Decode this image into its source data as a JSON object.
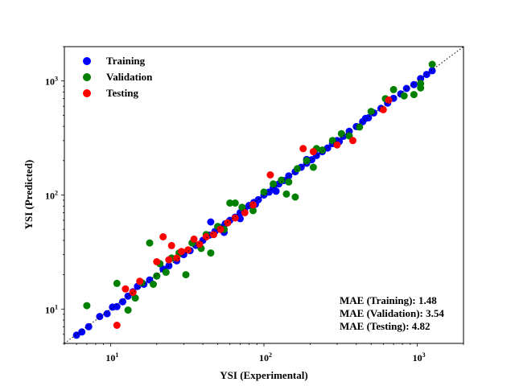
{
  "chart_data": {
    "type": "scatter",
    "title": "",
    "xlabel": "YSI (Experimental)",
    "ylabel": "YSI (Predicted)",
    "xscale": "log",
    "yscale": "log",
    "xlim": [
      5,
      2000
    ],
    "ylim": [
      5,
      2000
    ],
    "x_ticks": [
      "10^1",
      "10^2",
      "10^3"
    ],
    "y_ticks": [
      "10^1",
      "10^2",
      "10^3"
    ],
    "grid": false,
    "legend_position": "upper-left",
    "reference_line": "y = x (dotted)",
    "annotations": [
      "MAE (Training): 1.48",
      "MAE (Validation): 3.54",
      "MAE (Testing): 4.82"
    ],
    "series": [
      {
        "name": "Training",
        "color": "#0000ff",
        "points": [
          [
            6.0,
            5.9
          ],
          [
            6.5,
            6.3
          ],
          [
            7.2,
            7.0
          ],
          [
            8.5,
            8.6
          ],
          [
            9.5,
            9.1
          ],
          [
            10.3,
            10.4
          ],
          [
            11,
            10.5
          ],
          [
            12,
            11.6
          ],
          [
            13,
            13
          ],
          [
            14,
            14.2
          ],
          [
            15,
            15.8
          ],
          [
            16.5,
            16.5
          ],
          [
            18,
            18
          ],
          [
            20,
            19.5
          ],
          [
            22,
            22.4
          ],
          [
            24,
            24
          ],
          [
            27,
            26.5
          ],
          [
            30,
            30
          ],
          [
            33,
            32.5
          ],
          [
            36,
            36.2
          ],
          [
            40,
            40
          ],
          [
            44,
            44.5
          ],
          [
            48,
            48
          ],
          [
            52,
            52
          ],
          [
            56,
            56
          ],
          [
            60,
            60
          ],
          [
            65,
            64
          ],
          [
            70,
            70
          ],
          [
            75,
            75.5
          ],
          [
            80,
            81
          ],
          [
            86,
            86
          ],
          [
            92,
            91
          ],
          [
            100,
            100
          ],
          [
            108,
            106
          ],
          [
            115,
            116
          ],
          [
            125,
            125
          ],
          [
            135,
            134
          ],
          [
            145,
            147
          ],
          [
            160,
            160
          ],
          [
            175,
            175
          ],
          [
            190,
            190
          ],
          [
            205,
            204
          ],
          [
            220,
            222
          ],
          [
            240,
            240
          ],
          [
            260,
            258
          ],
          [
            280,
            282
          ],
          [
            300,
            300
          ],
          [
            330,
            327
          ],
          [
            360,
            362
          ],
          [
            400,
            398
          ],
          [
            440,
            440
          ],
          [
            480,
            475
          ],
          [
            520,
            525
          ],
          [
            580,
            575
          ],
          [
            640,
            640
          ],
          [
            700,
            705
          ],
          [
            780,
            770
          ],
          [
            850,
            860
          ],
          [
            950,
            930
          ],
          [
            1050,
            1050
          ],
          [
            1150,
            1140
          ],
          [
            1250,
            1230
          ],
          [
            45,
            58
          ],
          [
            55,
            47
          ],
          [
            70,
            62
          ],
          [
            88,
            83
          ],
          [
            120,
            108
          ],
          [
            190,
            205
          ],
          [
            310,
            295
          ],
          [
            460,
            470
          ]
        ]
      },
      {
        "name": "Validation",
        "color": "#008000",
        "points": [
          [
            7,
            10.7
          ],
          [
            11,
            16.8
          ],
          [
            13,
            9.8
          ],
          [
            14.5,
            12.5
          ],
          [
            16,
            17
          ],
          [
            18,
            38
          ],
          [
            19,
            16.5
          ],
          [
            20,
            19.5
          ],
          [
            21,
            25
          ],
          [
            23,
            21
          ],
          [
            25,
            28
          ],
          [
            28,
            31
          ],
          [
            31,
            20
          ],
          [
            34,
            38
          ],
          [
            39,
            34
          ],
          [
            42,
            45
          ],
          [
            45,
            31
          ],
          [
            50,
            53
          ],
          [
            55,
            50
          ],
          [
            60,
            85
          ],
          [
            65,
            85
          ],
          [
            72,
            78
          ],
          [
            85,
            73
          ],
          [
            100,
            106
          ],
          [
            115,
            125
          ],
          [
            130,
            135
          ],
          [
            140,
            102
          ],
          [
            160,
            96
          ],
          [
            190,
            200
          ],
          [
            210,
            175
          ],
          [
            240,
            248
          ],
          [
            280,
            300
          ],
          [
            320,
            345
          ],
          [
            360,
            330
          ],
          [
            420,
            395
          ],
          [
            500,
            540
          ],
          [
            620,
            700
          ],
          [
            700,
            840
          ],
          [
            820,
            740
          ],
          [
            950,
            760
          ],
          [
            1050,
            870
          ],
          [
            1250,
            1400
          ],
          [
            1050,
            950
          ],
          [
            145,
            130
          ],
          [
            165,
            170
          ],
          [
            220,
            255
          ]
        ]
      },
      {
        "name": "Testing",
        "color": "#ff0000",
        "points": [
          [
            11,
            7.2
          ],
          [
            12.5,
            15
          ],
          [
            14,
            14
          ],
          [
            15.5,
            17.5
          ],
          [
            20,
            26
          ],
          [
            22,
            43
          ],
          [
            24,
            27
          ],
          [
            25,
            36
          ],
          [
            27,
            28
          ],
          [
            29,
            32
          ],
          [
            32,
            33
          ],
          [
            35,
            41
          ],
          [
            38,
            37
          ],
          [
            42,
            43
          ],
          [
            47,
            45
          ],
          [
            52,
            50
          ],
          [
            58,
            57
          ],
          [
            65,
            63
          ],
          [
            75,
            70
          ],
          [
            85,
            82
          ],
          [
            110,
            150
          ],
          [
            180,
            255
          ],
          [
            210,
            240
          ],
          [
            300,
            275
          ],
          [
            380,
            300
          ],
          [
            600,
            560
          ],
          [
            650,
            680
          ]
        ]
      }
    ]
  }
}
